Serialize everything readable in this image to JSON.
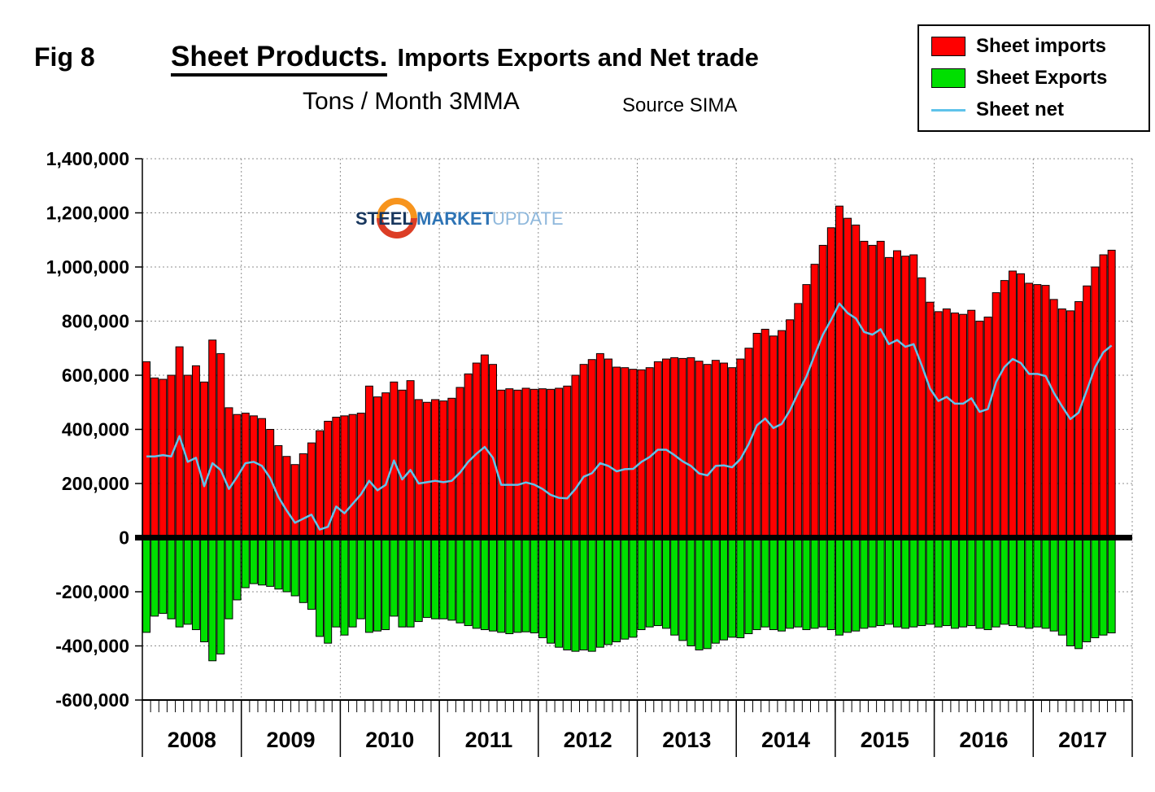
{
  "figure": {
    "fig_label": "Fig 8"
  },
  "title": {
    "main": "Sheet Products.",
    "rest": "Imports Exports and Net trade"
  },
  "subtitle": "Tons / Month 3MMA",
  "source": "Source SIMA",
  "legend": {
    "items": [
      {
        "label": "Sheet imports",
        "color": "#FF0000",
        "swatch": "box"
      },
      {
        "label": "Sheet Exports",
        "color": "#00DF00",
        "swatch": "box"
      },
      {
        "label": "Sheet net",
        "color": "#5FC3EA",
        "swatch": "line"
      }
    ]
  },
  "logo": {
    "words": [
      {
        "text": "STEEL",
        "color": "#17365D"
      },
      {
        "text": "MARKET",
        "color": "#2E74B5"
      },
      {
        "text": "UPDATE",
        "color": "#8FB8DC"
      }
    ],
    "swirl_colors": [
      "#F7941D",
      "#DC3E26"
    ]
  },
  "chart_data": {
    "type": "bar",
    "title": "Sheet Products. Imports Exports and Net trade",
    "subtitle": "Tons / Month 3MMA",
    "source": "SIMA",
    "xlabel": "",
    "ylabel": "Tons / Month (3MMA)",
    "unit": "tons",
    "x_start": "2008-01",
    "x_frequency": "monthly",
    "n_months": 118,
    "year_labels": [
      "2008",
      "2009",
      "2010",
      "2011",
      "2012",
      "2013",
      "2014",
      "2015",
      "2016",
      "2017"
    ],
    "ylim": [
      -600000,
      1400000
    ],
    "ytick_step": 200000,
    "grid": true,
    "legend_position": "top-right",
    "series": [
      {
        "name": "Sheet imports",
        "type": "bar",
        "color": "#FF0000",
        "values": [
          650000,
          590000,
          585000,
          600000,
          705000,
          600000,
          635000,
          575000,
          730000,
          680000,
          480000,
          455000,
          460000,
          450000,
          440000,
          400000,
          340000,
          300000,
          270000,
          310000,
          350000,
          395000,
          430000,
          445000,
          450000,
          455000,
          460000,
          560000,
          520000,
          535000,
          575000,
          545000,
          580000,
          510000,
          500000,
          510000,
          505000,
          515000,
          555000,
          605000,
          645000,
          675000,
          640000,
          545000,
          550000,
          545000,
          552000,
          548000,
          550000,
          548000,
          552000,
          560000,
          600000,
          640000,
          658000,
          680000,
          660000,
          630000,
          628000,
          622000,
          620000,
          628000,
          650000,
          660000,
          665000,
          662000,
          665000,
          652000,
          640000,
          655000,
          645000,
          628000,
          660000,
          700000,
          755000,
          770000,
          745000,
          765000,
          805000,
          865000,
          935000,
          1010000,
          1080000,
          1145000,
          1225000,
          1180000,
          1155000,
          1095000,
          1080000,
          1095000,
          1035000,
          1060000,
          1040000,
          1045000,
          960000,
          870000,
          835000,
          845000,
          830000,
          825000,
          840000,
          800000,
          815000,
          905000,
          950000,
          985000,
          975000,
          940000,
          935000,
          932000,
          880000,
          845000,
          838000,
          872000,
          930000,
          1000000,
          1045000,
          1062000
        ]
      },
      {
        "name": "Sheet Exports",
        "type": "bar",
        "color": "#00DF00",
        "values": [
          -350000,
          -290000,
          -280000,
          -300000,
          -330000,
          -320000,
          -340000,
          -385000,
          -455000,
          -430000,
          -300000,
          -230000,
          -185000,
          -170000,
          -175000,
          -180000,
          -190000,
          -200000,
          -215000,
          -240000,
          -265000,
          -365000,
          -390000,
          -330000,
          -360000,
          -330000,
          -300000,
          -350000,
          -345000,
          -340000,
          -290000,
          -330000,
          -330000,
          -310000,
          -295000,
          -300000,
          -300000,
          -305000,
          -315000,
          -325000,
          -335000,
          -340000,
          -345000,
          -350000,
          -355000,
          -350000,
          -348000,
          -352000,
          -370000,
          -390000,
          -405000,
          -415000,
          -420000,
          -415000,
          -420000,
          -405000,
          -395000,
          -385000,
          -375000,
          -368000,
          -340000,
          -330000,
          -325000,
          -335000,
          -360000,
          -380000,
          -400000,
          -415000,
          -410000,
          -390000,
          -378000,
          -368000,
          -370000,
          -355000,
          -340000,
          -330000,
          -340000,
          -345000,
          -335000,
          -330000,
          -340000,
          -335000,
          -330000,
          -340000,
          -360000,
          -350000,
          -345000,
          -335000,
          -330000,
          -325000,
          -320000,
          -330000,
          -335000,
          -330000,
          -325000,
          -320000,
          -330000,
          -325000,
          -335000,
          -330000,
          -325000,
          -335000,
          -340000,
          -330000,
          -320000,
          -325000,
          -330000,
          -335000,
          -330000,
          -335000,
          -345000,
          -360000,
          -400000,
          -410000,
          -385000,
          -370000,
          -360000,
          -352000
        ]
      },
      {
        "name": "Sheet net",
        "type": "line",
        "color": "#5FC3EA",
        "values": [
          300000,
          300000,
          305000,
          300000,
          375000,
          280000,
          295000,
          190000,
          275000,
          250000,
          180000,
          225000,
          275000,
          280000,
          265000,
          220000,
          150000,
          100000,
          55000,
          70000,
          85000,
          30000,
          40000,
          115000,
          90000,
          125000,
          160000,
          210000,
          175000,
          195000,
          285000,
          215000,
          250000,
          200000,
          205000,
          210000,
          205000,
          210000,
          240000,
          280000,
          310000,
          335000,
          295000,
          195000,
          195000,
          195000,
          204000,
          196000,
          180000,
          158000,
          147000,
          145000,
          180000,
          225000,
          238000,
          275000,
          265000,
          245000,
          253000,
          254000,
          280000,
          298000,
          325000,
          325000,
          305000,
          282000,
          265000,
          237000,
          230000,
          265000,
          267000,
          260000,
          290000,
          345000,
          415000,
          440000,
          405000,
          420000,
          470000,
          535000,
          595000,
          675000,
          750000,
          805000,
          865000,
          830000,
          810000,
          760000,
          750000,
          770000,
          715000,
          730000,
          705000,
          715000,
          635000,
          550000,
          505000,
          520000,
          495000,
          495000,
          515000,
          465000,
          475000,
          575000,
          630000,
          660000,
          645000,
          605000,
          605000,
          597000,
          535000,
          485000,
          438000,
          462000,
          545000,
          630000,
          685000,
          710000
        ]
      }
    ]
  }
}
